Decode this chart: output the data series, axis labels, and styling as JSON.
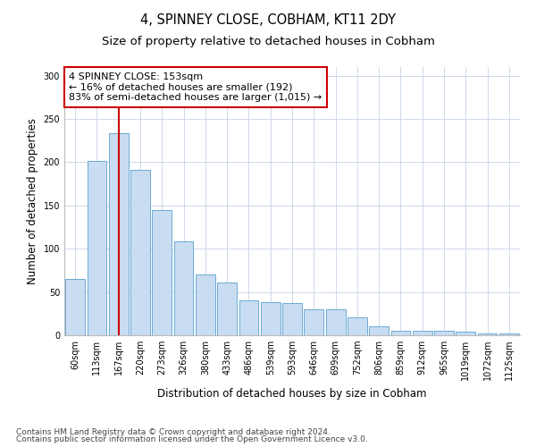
{
  "title": "4, SPINNEY CLOSE, COBHAM, KT11 2DY",
  "subtitle": "Size of property relative to detached houses in Cobham",
  "xlabel": "Distribution of detached houses by size in Cobham",
  "ylabel": "Number of detached properties",
  "categories": [
    "60sqm",
    "113sqm",
    "167sqm",
    "220sqm",
    "273sqm",
    "326sqm",
    "380sqm",
    "433sqm",
    "486sqm",
    "539sqm",
    "593sqm",
    "646sqm",
    "699sqm",
    "752sqm",
    "806sqm",
    "859sqm",
    "912sqm",
    "965sqm",
    "1019sqm",
    "1072sqm",
    "1125sqm"
  ],
  "values": [
    65,
    202,
    234,
    191,
    145,
    109,
    70,
    61,
    40,
    38,
    37,
    30,
    30,
    21,
    10,
    5,
    5,
    5,
    4,
    2,
    2
  ],
  "bar_color": "#c9ddf2",
  "bar_edge_color": "#6aaad4",
  "property_line_x": 2.0,
  "annotation_text": "4 SPINNEY CLOSE: 153sqm\n← 16% of detached houses are smaller (192)\n83% of semi-detached houses are larger (1,015) →",
  "annotation_box_color": "#ffffff",
  "annotation_box_edge_color": "#cc0000",
  "vline_color": "#cc0000",
  "footer_line1": "Contains HM Land Registry data © Crown copyright and database right 2024.",
  "footer_line2": "Contains public sector information licensed under the Open Government Licence v3.0.",
  "ylim": [
    0,
    310
  ],
  "yticks": [
    0,
    50,
    100,
    150,
    200,
    250,
    300
  ],
  "title_fontsize": 10.5,
  "subtitle_fontsize": 9.5,
  "tick_fontsize": 7,
  "axis_label_fontsize": 8.5,
  "annotation_fontsize": 8,
  "footer_fontsize": 6.5,
  "background_color": "#ffffff",
  "grid_color": "#cdd8ea"
}
